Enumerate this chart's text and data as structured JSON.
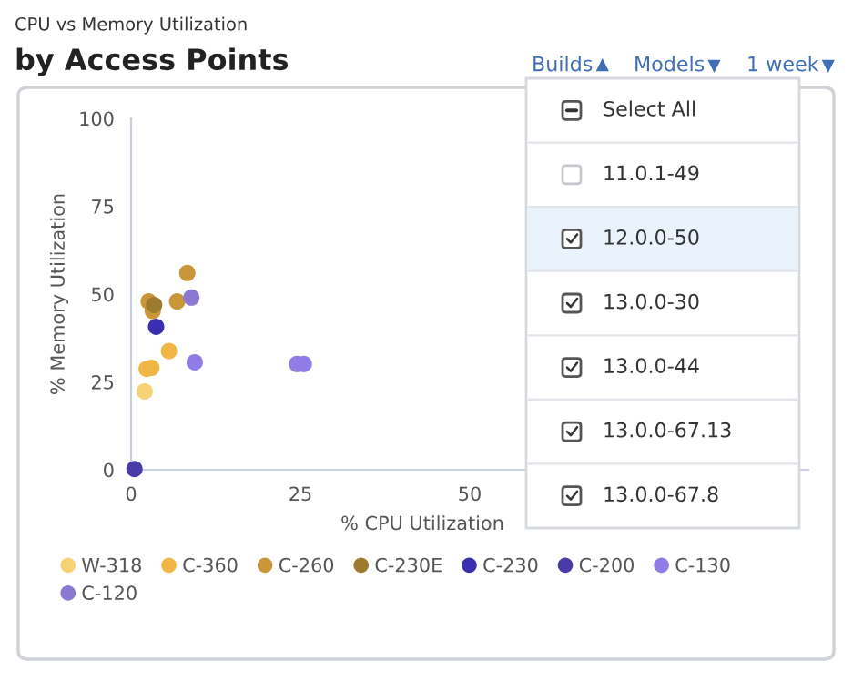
{
  "chart_data": {
    "type": "scatter",
    "title": "CPU vs Memory Utilization",
    "subtitle": "by Access Points",
    "xlabel": "% CPU Utilization",
    "ylabel": "% Memory Utilization",
    "xlim": [
      0,
      100
    ],
    "xticks": [
      0,
      25,
      50
    ],
    "ylim": [
      0,
      100
    ],
    "yticks": [
      0,
      25,
      50,
      75,
      100
    ],
    "grid": false,
    "legend": "bottom",
    "marker": "circle",
    "annotations": [
      "Builds",
      "Models",
      "1 week",
      "Select All",
      "11.0.1-49",
      "12.0.0-50",
      "13.0.0-30",
      "13.0.0-44",
      "13.0.0-67.13",
      "13.0.0-67.8"
    ],
    "series": [
      {
        "name": "W-318",
        "color": "#f7d274",
        "x": [
          2.0
        ],
        "values": [
          22.3
        ]
      },
      {
        "name": "C-360",
        "color": "#f2b646",
        "x": [
          2.3,
          3.0,
          5.6
        ],
        "values": [
          28.7,
          29.0,
          33.8
        ]
      },
      {
        "name": "C-260",
        "color": "#c9963a",
        "x": [
          2.6,
          6.8,
          8.3,
          3.2
        ],
        "values": [
          47.9,
          47.9,
          56.0,
          45.2
        ]
      },
      {
        "name": "C-230E",
        "color": "#9c7a2e",
        "x": [
          3.4
        ],
        "values": [
          46.9
        ]
      },
      {
        "name": "C-230",
        "color": "#3a2fb0",
        "x": [
          3.7
        ],
        "values": [
          40.7
        ]
      },
      {
        "name": "C-200",
        "color": "#4a3ca8",
        "x": [
          0.5
        ],
        "values": [
          0.2
        ]
      },
      {
        "name": "C-130",
        "color": "#8f7ce6",
        "x": [
          9.4,
          24.5,
          25.5
        ],
        "values": [
          30.6,
          30.1,
          30.1
        ]
      },
      {
        "name": "C-120",
        "color": "#8a78d2",
        "x": [
          8.9
        ],
        "values": [
          49.0
        ]
      }
    ]
  }
}
